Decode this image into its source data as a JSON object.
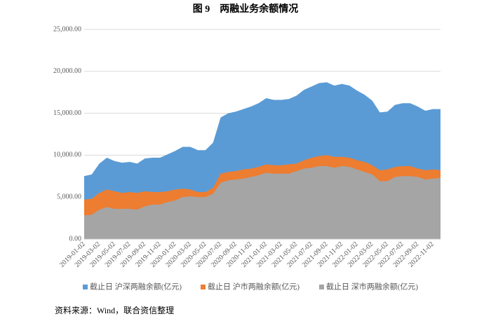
{
  "chart_data": {
    "type": "area",
    "title": "图 9　两融业务余额情况",
    "source": "资料来源：Wind，联合资信整理",
    "categories": [
      "2019-01-02",
      null,
      "2019-03-02",
      null,
      "2019-05-02",
      null,
      "2019-07-02",
      null,
      "2019-09-02",
      null,
      "2019-11-02",
      null,
      "2020-01-02",
      null,
      "2020-03-02",
      null,
      "2020-05-02",
      null,
      "2020-07-02",
      null,
      "2020-09-02",
      null,
      "2020-11-02",
      null,
      "2021-01-02",
      null,
      "2021-03-02",
      null,
      "2021-05-02",
      null,
      "2021-07-02",
      null,
      "2021-09-02",
      null,
      "2021-11-02",
      null,
      "2022-01-02",
      null,
      "2022-03-02",
      null,
      "2022-05-02",
      null,
      "2022-07-02",
      null,
      "2022-09-02",
      null,
      "2022-11-02",
      null
    ],
    "series": [
      {
        "name": "截止日 沪深两融余额(亿元)",
        "color": "#5b9bd5",
        "values": [
          7500,
          7700,
          9000,
          9700,
          9300,
          9100,
          9200,
          9000,
          9600,
          9700,
          9700,
          10100,
          10500,
          11000,
          11000,
          10600,
          10600,
          11500,
          14500,
          15000,
          15200,
          15500,
          15800,
          16200,
          16800,
          16600,
          16600,
          16700,
          17100,
          17800,
          18200,
          18600,
          18700,
          18300,
          18500,
          18300,
          17700,
          17200,
          16500,
          15100,
          15200,
          16000,
          16200,
          16200,
          15800,
          15300,
          15500,
          15500
        ]
      },
      {
        "name": "截止日 沪市两融余额(亿元)",
        "color": "#ed7d31",
        "values": [
          4700,
          4800,
          5500,
          5900,
          5700,
          5500,
          5600,
          5500,
          5700,
          5600,
          5600,
          5700,
          5900,
          6000,
          5900,
          5600,
          5600,
          6100,
          7800,
          8000,
          8100,
          8300,
          8400,
          8600,
          8900,
          8800,
          8800,
          8900,
          9000,
          9400,
          9700,
          9900,
          10000,
          9800,
          9800,
          9700,
          9400,
          9200,
          8800,
          8200,
          8300,
          8600,
          8700,
          8700,
          8400,
          8200,
          8300,
          8200
        ]
      },
      {
        "name": "截止日 深市两融余额(亿元)",
        "color": "#a5a5a5",
        "values": [
          2800,
          2900,
          3500,
          3800,
          3600,
          3600,
          3600,
          3500,
          3900,
          4100,
          4100,
          4400,
          4600,
          5000,
          5100,
          5000,
          5000,
          5400,
          6700,
          7000,
          7100,
          7200,
          7400,
          7600,
          7900,
          7800,
          7800,
          7800,
          8100,
          8400,
          8500,
          8700,
          8700,
          8500,
          8700,
          8600,
          8300,
          8000,
          7700,
          6900,
          6900,
          7400,
          7500,
          7500,
          7400,
          7100,
          7200,
          7300
        ]
      }
    ],
    "ylim": [
      0,
      25000
    ],
    "yticks": [
      {
        "value": 0,
        "label": "0.00"
      },
      {
        "value": 5000,
        "label": "5,000.00"
      },
      {
        "value": 10000,
        "label": "10,000.00"
      },
      {
        "value": 15000,
        "label": "15,000.00"
      },
      {
        "value": 20000,
        "label": "20,000.00"
      },
      {
        "value": 25000,
        "label": "25,000.00"
      }
    ],
    "grid": true,
    "legend": "bottom"
  }
}
